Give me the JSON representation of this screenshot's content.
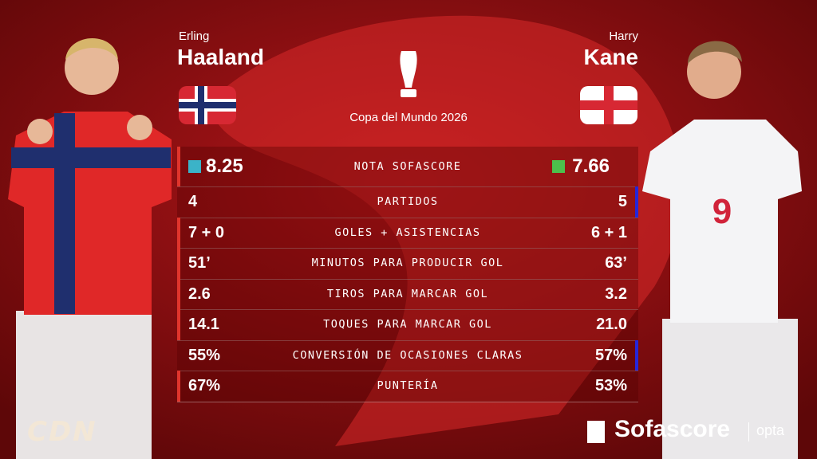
{
  "left_player": {
    "first_name": "Erling",
    "last_name": "Haaland"
  },
  "right_player": {
    "first_name": "Harry",
    "last_name": "Kane"
  },
  "competition": "Copa del Mundo 2026",
  "stats": [
    {
      "label": "NOTA SOFASCORE",
      "left": "8.25",
      "right": "7.66",
      "better": "left"
    },
    {
      "label": "PARTIDOS",
      "left": "4",
      "right": "5",
      "better": "right"
    },
    {
      "label": "GOLES + ASISTENCIAS",
      "left": "7 + 0",
      "right": "6 + 1",
      "better": "left"
    },
    {
      "label": "MINUTOS PARA PRODUCIR GOL",
      "left": "51’",
      "right": "63’",
      "better": "left"
    },
    {
      "label": "TIROS PARA MARCAR GOL",
      "left": "2.6",
      "right": "3.2",
      "better": "left"
    },
    {
      "label": "TOQUES PARA MARCAR GOL",
      "left": "14.1",
      "right": "21.0",
      "better": "left"
    },
    {
      "label": "CONVERSIÓN DE OCASIONES CLARAS",
      "left": "55%",
      "right": "57%",
      "better": "right"
    },
    {
      "label": "PUNTERÍA",
      "left": "67%",
      "right": "53%",
      "better": "left"
    }
  ],
  "footer": {
    "left_logo": "CDN",
    "right_logo": "Sofascore",
    "partner": "opta"
  }
}
